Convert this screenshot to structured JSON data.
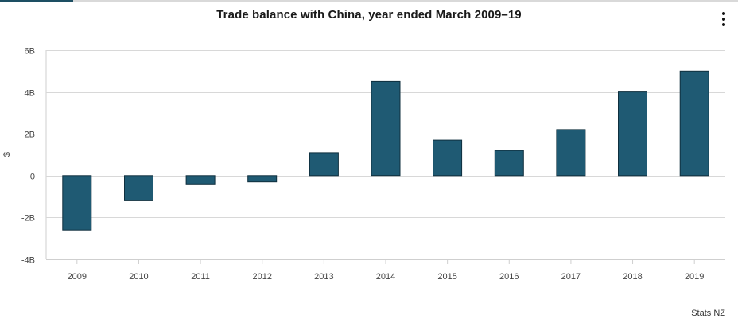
{
  "header": {
    "title": "Trade balance with China, year ended March 2009–19",
    "menu_icon": "kebab-menu-icon"
  },
  "axis": {
    "ylabel": "$",
    "yticks": [
      {
        "value": 6,
        "label": "6B"
      },
      {
        "value": 4,
        "label": "4B"
      },
      {
        "value": 2,
        "label": "2B"
      },
      {
        "value": 0,
        "label": "0"
      },
      {
        "value": -2,
        "label": "-2B"
      },
      {
        "value": -4,
        "label": "-4B"
      }
    ]
  },
  "footer": {
    "source": "Stats NZ"
  },
  "colors": {
    "bar_fill": "#1f5a73",
    "bar_stroke": "#0f2f3e",
    "grid": "#d8d8d8",
    "tab_active": "#1d4f63"
  },
  "chart_data": {
    "type": "bar",
    "title": "Trade balance with China, year ended March 2009–19",
    "xlabel": "",
    "ylabel": "$",
    "categories": [
      "2009",
      "2010",
      "2011",
      "2012",
      "2013",
      "2014",
      "2015",
      "2016",
      "2017",
      "2018",
      "2019"
    ],
    "values": [
      -2.6,
      -1.2,
      -0.4,
      -0.3,
      1.1,
      4.5,
      1.7,
      1.2,
      2.2,
      4.0,
      5.0
    ],
    "units": "billion NZD",
    "ylim": [
      -4,
      6
    ],
    "yticks": [
      "-4B",
      "-2B",
      "0",
      "2B",
      "4B",
      "6B"
    ],
    "grid": true,
    "legend": null,
    "source": "Stats NZ"
  }
}
